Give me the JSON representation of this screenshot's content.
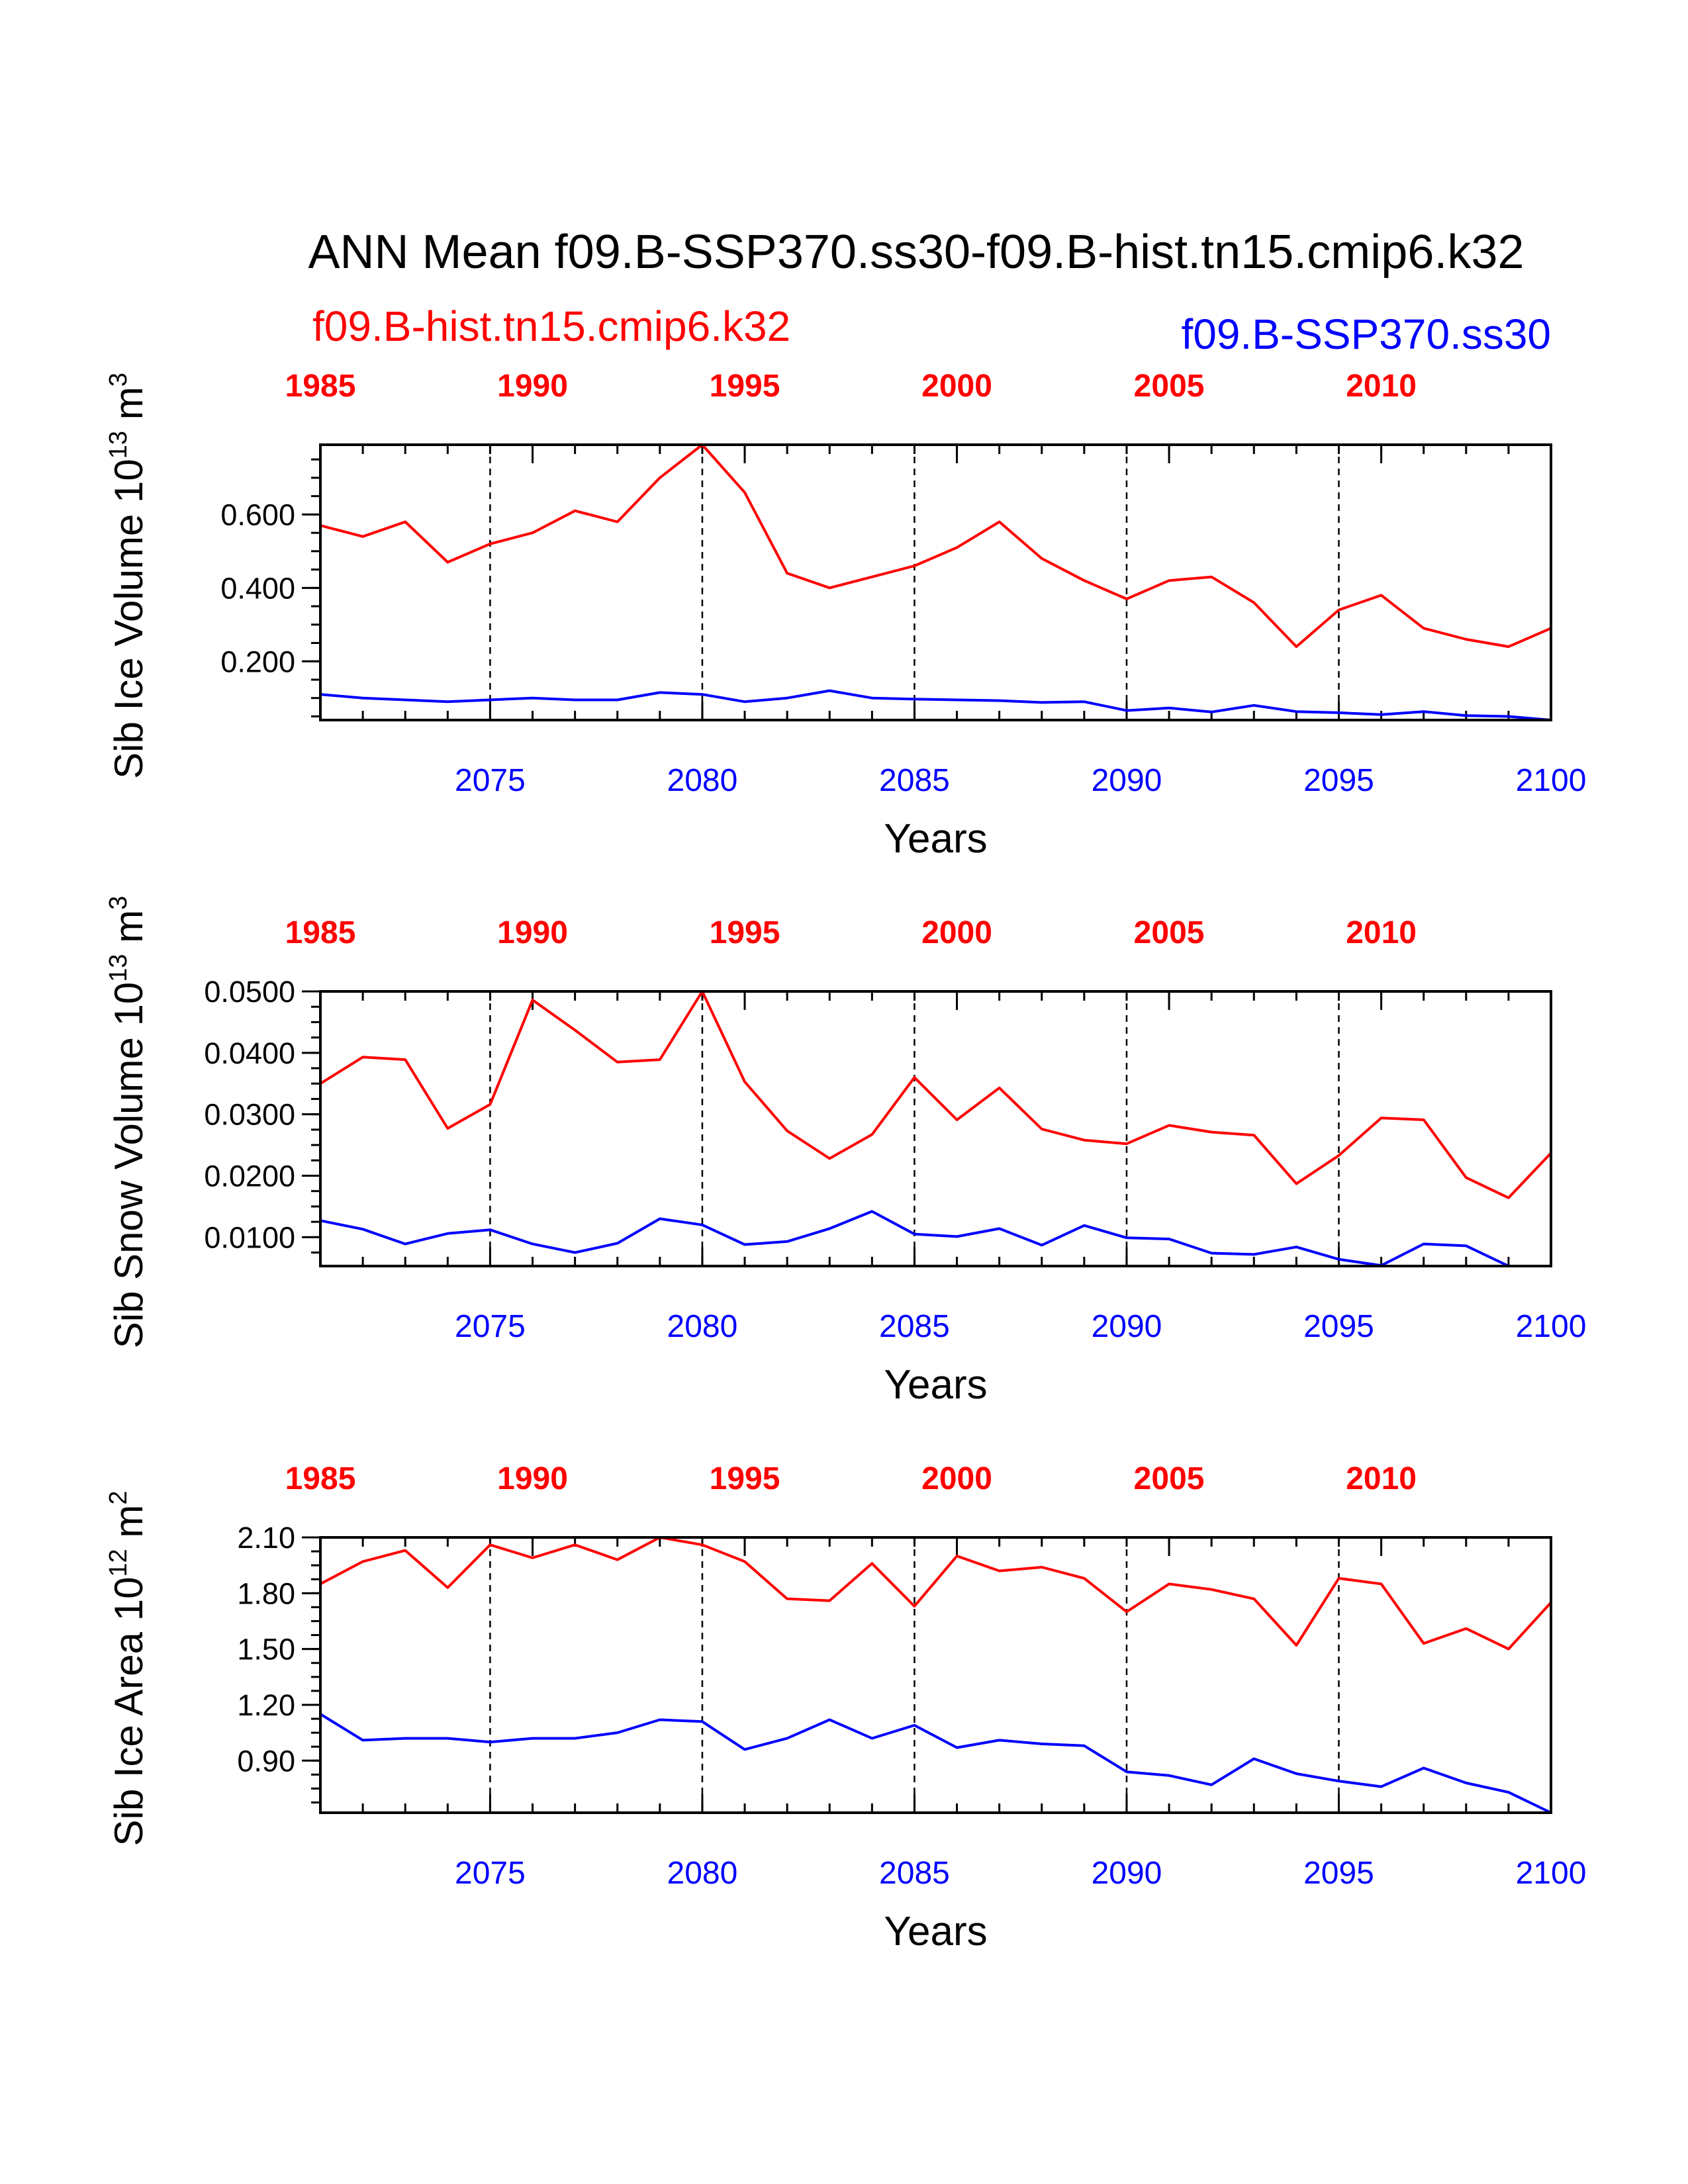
{
  "title": "ANN Mean f09.B-SSP370.ss30-f09.B-hist.tn15.cmip6.k32",
  "legend": {
    "left": {
      "text": "f09.B-hist.tn15.cmip6.k32",
      "color": "#ff0000"
    },
    "right": {
      "text": "f09.B-SSP370.ss30",
      "color": "#0000ff"
    }
  },
  "colors": {
    "hist": "#ff0000",
    "ssp": "#0000ff",
    "axis": "#000000"
  },
  "chart_data": [
    {
      "type": "line",
      "ylabel": {
        "main": "Sib Ice Volume 10",
        "exp": "13",
        "unit": " m",
        "unit_exp": "3"
      },
      "xlabel": "Years",
      "ylim": [
        0.04,
        0.79
      ],
      "yticks": [
        0.2,
        0.4,
        0.6
      ],
      "ytick_labels": [
        "0.200",
        "0.400",
        "0.600"
      ],
      "grid": "dashed vertical lines at 2075, 2080, 2085, 2090, 2095",
      "x_bottom": {
        "range": [
          2071,
          2100
        ],
        "ticks": [
          2075,
          2080,
          2085,
          2090,
          2095,
          2100
        ],
        "labels": [
          "2075",
          "2080",
          "2085",
          "2090",
          "2095",
          "2100"
        ]
      },
      "x_top": {
        "range": [
          1985,
          2014
        ],
        "labels": [
          "1985",
          "1990",
          "1995",
          "2000",
          "2005",
          "2010"
        ],
        "ticks": [
          1985,
          1990,
          1995,
          2000,
          2005,
          2010
        ]
      },
      "series": [
        {
          "name": "f09.B-hist.tn15.cmip6.k32",
          "axis": "top",
          "x": [
            1985,
            1986,
            1987,
            1988,
            1989,
            1990,
            1991,
            1992,
            1993,
            1994,
            1995,
            1996,
            1997,
            1998,
            1999,
            2000,
            2001,
            2002,
            2003,
            2004,
            2005,
            2006,
            2007,
            2008,
            2009,
            2010,
            2011,
            2012,
            2013,
            2014
          ],
          "values": [
            0.57,
            0.54,
            0.58,
            0.47,
            0.52,
            0.55,
            0.61,
            0.58,
            0.7,
            0.79,
            0.66,
            0.44,
            0.4,
            0.43,
            0.46,
            0.51,
            0.58,
            0.48,
            0.42,
            0.37,
            0.42,
            0.43,
            0.36,
            0.24,
            0.34,
            0.38,
            0.29,
            0.26,
            0.24,
            0.29
          ]
        },
        {
          "name": "f09.B-SSP370.ss30",
          "axis": "bottom",
          "x": [
            2071,
            2072,
            2073,
            2074,
            2075,
            2076,
            2077,
            2078,
            2079,
            2080,
            2081,
            2082,
            2083,
            2084,
            2085,
            2086,
            2087,
            2088,
            2089,
            2090,
            2091,
            2092,
            2093,
            2094,
            2095,
            2096,
            2097,
            2098,
            2099,
            2100
          ],
          "values": [
            0.11,
            0.1,
            0.095,
            0.09,
            0.095,
            0.1,
            0.095,
            0.095,
            0.115,
            0.11,
            0.09,
            0.1,
            0.12,
            0.1,
            0.097,
            0.095,
            0.093,
            0.088,
            0.09,
            0.066,
            0.073,
            0.062,
            0.08,
            0.063,
            0.06,
            0.055,
            0.063,
            0.052,
            0.05,
            0.04
          ]
        }
      ]
    },
    {
      "type": "line",
      "ylabel": {
        "main": "Sib Snow Volume 10",
        "exp": "13",
        "unit": " m",
        "unit_exp": "3"
      },
      "xlabel": "Years",
      "ylim": [
        0.0053,
        0.05
      ],
      "yticks": [
        0.01,
        0.02,
        0.03,
        0.04,
        0.05
      ],
      "ytick_labels": [
        "0.0100",
        "0.0200",
        "0.0300",
        "0.0400",
        "0.0500"
      ],
      "grid": "dashed vertical lines at 2075, 2080, 2085, 2090, 2095",
      "x_bottom": {
        "range": [
          2071,
          2100
        ],
        "ticks": [
          2075,
          2080,
          2085,
          2090,
          2095,
          2100
        ],
        "labels": [
          "2075",
          "2080",
          "2085",
          "2090",
          "2095",
          "2100"
        ]
      },
      "x_top": {
        "range": [
          1985,
          2014
        ],
        "labels": [
          "1985",
          "1990",
          "1995",
          "2000",
          "2005",
          "2010"
        ],
        "ticks": [
          1985,
          1990,
          1995,
          2000,
          2005,
          2010
        ]
      },
      "series": [
        {
          "name": "f09.B-hist.tn15.cmip6.k32",
          "axis": "top",
          "x": [
            1985,
            1986,
            1987,
            1988,
            1989,
            1990,
            1991,
            1992,
            1993,
            1994,
            1995,
            1996,
            1997,
            1998,
            1999,
            2000,
            2001,
            2002,
            2003,
            2004,
            2005,
            2006,
            2007,
            2008,
            2009,
            2010,
            2011,
            2012,
            2013,
            2014
          ],
          "values": [
            0.035,
            0.0393,
            0.0389,
            0.0277,
            0.0316,
            0.0486,
            0.0437,
            0.0385,
            0.0389,
            0.05,
            0.0353,
            0.0273,
            0.0228,
            0.0267,
            0.036,
            0.0291,
            0.0343,
            0.0276,
            0.0258,
            0.0252,
            0.0282,
            0.0271,
            0.0266,
            0.0187,
            0.0233,
            0.0294,
            0.0291,
            0.0197,
            0.0164,
            0.0237
          ]
        },
        {
          "name": "f09.B-SSP370.ss30",
          "axis": "bottom",
          "x": [
            2071,
            2072,
            2073,
            2074,
            2075,
            2076,
            2077,
            2078,
            2079,
            2080,
            2081,
            2082,
            2083,
            2084,
            2085,
            2086,
            2087,
            2088,
            2089,
            2090,
            2091,
            2092,
            2093,
            2094,
            2095,
            2096,
            2097,
            2098,
            2099,
            2100
          ],
          "values": [
            0.0127,
            0.0113,
            0.0089,
            0.0106,
            0.0112,
            0.0089,
            0.0075,
            0.009,
            0.013,
            0.012,
            0.0088,
            0.0093,
            0.0114,
            0.0142,
            0.0105,
            0.0101,
            0.0114,
            0.0087,
            0.0119,
            0.0099,
            0.0097,
            0.0074,
            0.0072,
            0.0084,
            0.0064,
            0.0054,
            0.0089,
            0.0086,
            0.0053,
            0.0053
          ]
        }
      ]
    },
    {
      "type": "line",
      "ylabel": {
        "main": "Sib Ice Area 10",
        "exp": "12",
        "unit": " m",
        "unit_exp": "2"
      },
      "xlabel": "Years",
      "ylim": [
        0.62,
        2.1
      ],
      "yticks": [
        0.9,
        1.2,
        1.5,
        1.8,
        2.1
      ],
      "ytick_labels": [
        "0.90",
        "1.20",
        "1.50",
        "1.80",
        "2.10"
      ],
      "grid": "dashed vertical lines at 2075, 2080, 2085, 2090, 2095",
      "x_bottom": {
        "range": [
          2071,
          2100
        ],
        "ticks": [
          2075,
          2080,
          2085,
          2090,
          2095,
          2100
        ],
        "labels": [
          "2075",
          "2080",
          "2085",
          "2090",
          "2095",
          "2100"
        ]
      },
      "x_top": {
        "range": [
          1985,
          2014
        ],
        "labels": [
          "1985",
          "1990",
          "1995",
          "2000",
          "2005",
          "2010"
        ],
        "ticks": [
          1985,
          1990,
          1995,
          2000,
          2005,
          2010
        ]
      },
      "series": [
        {
          "name": "f09.B-hist.tn15.cmip6.k32",
          "axis": "top",
          "x": [
            1985,
            1986,
            1987,
            1988,
            1989,
            1990,
            1991,
            1992,
            1993,
            1994,
            1995,
            1996,
            1997,
            1998,
            1999,
            2000,
            2001,
            2002,
            2003,
            2004,
            2005,
            2006,
            2007,
            2008,
            2009,
            2010,
            2011,
            2012,
            2013,
            2014
          ],
          "values": [
            1.85,
            1.97,
            2.03,
            1.83,
            2.06,
            1.99,
            2.06,
            1.98,
            2.1,
            2.06,
            1.97,
            1.77,
            1.76,
            1.96,
            1.73,
            2.0,
            1.92,
            1.94,
            1.88,
            1.7,
            1.85,
            1.82,
            1.77,
            1.52,
            1.88,
            1.85,
            1.53,
            1.61,
            1.5,
            1.75
          ]
        },
        {
          "name": "f09.B-SSP370.ss30",
          "axis": "bottom",
          "x": [
            2071,
            2072,
            2073,
            2074,
            2075,
            2076,
            2077,
            2078,
            2079,
            2080,
            2081,
            2082,
            2083,
            2084,
            2085,
            2086,
            2087,
            2088,
            2089,
            2090,
            2091,
            2092,
            2093,
            2094,
            2095,
            2096,
            2097,
            2098,
            2099,
            2100
          ],
          "values": [
            1.15,
            1.01,
            1.02,
            1.02,
            1.0,
            1.02,
            1.02,
            1.05,
            1.12,
            1.11,
            0.96,
            1.02,
            1.12,
            1.02,
            1.09,
            0.97,
            1.01,
            0.99,
            0.98,
            0.84,
            0.82,
            0.77,
            0.91,
            0.83,
            0.79,
            0.76,
            0.86,
            0.78,
            0.73,
            0.62
          ]
        }
      ]
    }
  ]
}
